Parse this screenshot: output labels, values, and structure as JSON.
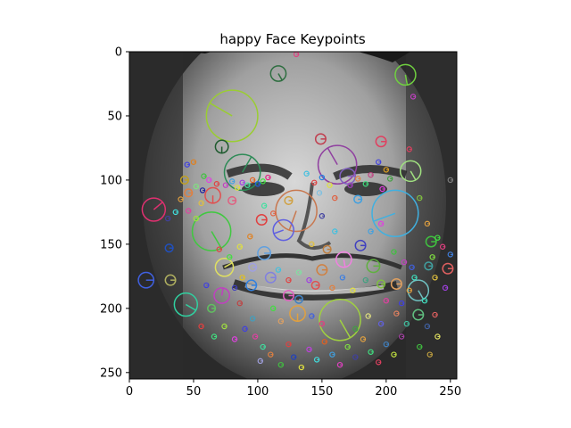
{
  "chart_data": {
    "type": "scatter",
    "title": "happy Face Keypoints",
    "xlabel": "",
    "ylabel": "",
    "xlim": [
      0,
      255
    ],
    "ylim": [
      255,
      0
    ],
    "grid": false,
    "x_ticks": [
      0,
      50,
      100,
      150,
      200,
      250
    ],
    "y_ticks": [
      0,
      50,
      100,
      150,
      200,
      250
    ],
    "x_tick_labels": [
      "0",
      "50",
      "100",
      "150",
      "200",
      "250"
    ],
    "y_tick_labels": [
      "0",
      "50",
      "100",
      "150",
      "200",
      "250"
    ],
    "background_image": "grayscale-face-photo",
    "keypoints": [
      {
        "x": 80,
        "y": 50,
        "r": 20,
        "angle": 150,
        "color": "#9acd32"
      },
      {
        "x": 130,
        "y": 124,
        "r": 16,
        "angle": 250,
        "color": "#c87850"
      },
      {
        "x": 207,
        "y": 126,
        "r": 18,
        "angle": 200,
        "color": "#40b0e0"
      },
      {
        "x": 64,
        "y": 140,
        "r": 15,
        "angle": 300,
        "color": "#40c840"
      },
      {
        "x": 164,
        "y": 209,
        "r": 16,
        "angle": 300,
        "color": "#a0d040"
      },
      {
        "x": 88,
        "y": 94,
        "r": 14,
        "angle": 60,
        "color": "#2e8b57"
      },
      {
        "x": 162,
        "y": 88,
        "r": 15,
        "angle": 120,
        "color": "#9040a0"
      },
      {
        "x": 19,
        "y": 123,
        "r": 9,
        "angle": 40,
        "color": "#e03070"
      },
      {
        "x": 44,
        "y": 197,
        "r": 9,
        "angle": 330,
        "color": "#30d0a0"
      },
      {
        "x": 120,
        "y": 139,
        "r": 8,
        "angle": 200,
        "color": "#6060e0"
      },
      {
        "x": 116,
        "y": 17,
        "r": 6,
        "angle": 300,
        "color": "#2e6e40"
      },
      {
        "x": 215,
        "y": 18,
        "r": 8,
        "angle": 280,
        "color": "#70d040"
      },
      {
        "x": 72,
        "y": 74,
        "r": 5,
        "angle": 270,
        "color": "#1e5a2e"
      },
      {
        "x": 219,
        "y": 93,
        "r": 8,
        "angle": 300,
        "color": "#a0e080"
      },
      {
        "x": 65,
        "y": 112,
        "r": 6,
        "angle": 270,
        "color": "#e05050"
      },
      {
        "x": 131,
        "y": 204,
        "r": 6,
        "angle": 270,
        "color": "#e0a040"
      },
      {
        "x": 225,
        "y": 186,
        "r": 8,
        "angle": 300,
        "color": "#70c0c0"
      },
      {
        "x": 74,
        "y": 168,
        "r": 7,
        "angle": 30,
        "color": "#e0e060"
      },
      {
        "x": 167,
        "y": 162,
        "r": 6,
        "angle": 280,
        "color": "#f080e0"
      },
      {
        "x": 72,
        "y": 190,
        "r": 6,
        "angle": 80,
        "color": "#c040c0"
      },
      {
        "x": 13,
        "y": 178,
        "r": 6,
        "angle": 0,
        "color": "#4060e0"
      },
      {
        "x": 103,
        "y": 131,
        "r": 4,
        "angle": 0,
        "color": "#e04040"
      },
      {
        "x": 105,
        "y": 157,
        "r": 5,
        "angle": 0,
        "color": "#60a0e0"
      },
      {
        "x": 170,
        "y": 97,
        "r": 6,
        "angle": 0,
        "color": "#8060c0"
      },
      {
        "x": 190,
        "y": 167,
        "r": 5,
        "angle": 0,
        "color": "#60b040"
      },
      {
        "x": 150,
        "y": 170,
        "r": 4,
        "angle": 0,
        "color": "#d08040"
      },
      {
        "x": 196,
        "y": 70,
        "r": 4,
        "angle": 0,
        "color": "#e04060"
      },
      {
        "x": 149,
        "y": 68,
        "r": 4,
        "angle": 0,
        "color": "#c04050"
      },
      {
        "x": 110,
        "y": 176,
        "r": 4,
        "angle": 0,
        "color": "#8080e0"
      },
      {
        "x": 95,
        "y": 182,
        "r": 4,
        "angle": 0,
        "color": "#3080e0"
      },
      {
        "x": 124,
        "y": 190,
        "r": 4,
        "angle": 0,
        "color": "#e060c0"
      },
      {
        "x": 32,
        "y": 178,
        "r": 4,
        "angle": 0,
        "color": "#b0b060"
      },
      {
        "x": 208,
        "y": 181,
        "r": 4,
        "angle": 0,
        "color": "#e0a060"
      },
      {
        "x": 225,
        "y": 205,
        "r": 4,
        "angle": 0,
        "color": "#60c080"
      },
      {
        "x": 248,
        "y": 169,
        "r": 4,
        "angle": 0,
        "color": "#e06060"
      },
      {
        "x": 235,
        "y": 148,
        "r": 4,
        "angle": 0,
        "color": "#40c040"
      },
      {
        "x": 43,
        "y": 100,
        "r": 3,
        "angle": 0,
        "color": "#c0a020"
      },
      {
        "x": 31,
        "y": 153,
        "r": 3,
        "angle": 0,
        "color": "#2050c0"
      },
      {
        "x": 180,
        "y": 151,
        "r": 4,
        "angle": 0,
        "color": "#4040c0"
      },
      {
        "x": 233,
        "y": 167,
        "r": 3,
        "angle": 0,
        "color": "#40a0a0"
      },
      {
        "x": 64,
        "y": 200,
        "r": 3,
        "angle": 0,
        "color": "#60c060"
      },
      {
        "x": 96,
        "y": 168,
        "r": 3,
        "angle": 0,
        "color": "#a0a0e0"
      },
      {
        "x": 46,
        "y": 110,
        "r": 3,
        "angle": 0,
        "color": "#e08040"
      },
      {
        "x": 80,
        "y": 116,
        "r": 3,
        "angle": 0,
        "color": "#e06080"
      },
      {
        "x": 124,
        "y": 116,
        "r": 3,
        "angle": 0,
        "color": "#d0a040"
      },
      {
        "x": 178,
        "y": 115,
        "r": 3,
        "angle": 0,
        "color": "#40a0e0"
      },
      {
        "x": 196,
        "y": 181,
        "r": 3,
        "angle": 0,
        "color": "#80c040"
      },
      {
        "x": 145,
        "y": 182,
        "r": 3,
        "angle": 0,
        "color": "#e05050"
      },
      {
        "x": 154,
        "y": 154,
        "r": 3,
        "angle": 0,
        "color": "#c08040"
      },
      {
        "x": 132,
        "y": 193,
        "r": 3,
        "angle": 0,
        "color": "#4080c0"
      }
    ],
    "markers": [
      {
        "x": 45,
        "y": 88,
        "color": "#4040e0"
      },
      {
        "x": 50,
        "y": 86,
        "color": "#e08020"
      },
      {
        "x": 58,
        "y": 97,
        "color": "#40c040"
      },
      {
        "x": 62,
        "y": 100,
        "color": "#e040e0"
      },
      {
        "x": 52,
        "y": 105,
        "color": "#80e080"
      },
      {
        "x": 57,
        "y": 108,
        "color": "#2020a0"
      },
      {
        "x": 68,
        "y": 103,
        "color": "#e04040"
      },
      {
        "x": 75,
        "y": 104,
        "color": "#c040c0"
      },
      {
        "x": 80,
        "y": 101,
        "color": "#40a0e0"
      },
      {
        "x": 84,
        "y": 106,
        "color": "#e0e040"
      },
      {
        "x": 88,
        "y": 102,
        "color": "#a040e0"
      },
      {
        "x": 92,
        "y": 104,
        "color": "#40e0a0"
      },
      {
        "x": 96,
        "y": 100,
        "color": "#e06020"
      },
      {
        "x": 100,
        "y": 103,
        "color": "#2060e0"
      },
      {
        "x": 104,
        "y": 101,
        "color": "#40e040"
      },
      {
        "x": 108,
        "y": 98,
        "color": "#e02080"
      },
      {
        "x": 40,
        "y": 115,
        "color": "#e0a040"
      },
      {
        "x": 36,
        "y": 125,
        "color": "#40e0e0"
      },
      {
        "x": 46,
        "y": 124,
        "color": "#e040a0"
      },
      {
        "x": 52,
        "y": 130,
        "color": "#a0e040"
      },
      {
        "x": 30,
        "y": 130,
        "color": "#4040a0"
      },
      {
        "x": 56,
        "y": 118,
        "color": "#e0c040"
      },
      {
        "x": 138,
        "y": 95,
        "color": "#40c0e0"
      },
      {
        "x": 144,
        "y": 102,
        "color": "#e04040"
      },
      {
        "x": 150,
        "y": 98,
        "color": "#2080e0"
      },
      {
        "x": 156,
        "y": 104,
        "color": "#e0e040"
      },
      {
        "x": 172,
        "y": 104,
        "color": "#a040c0"
      },
      {
        "x": 178,
        "y": 99,
        "color": "#e08040"
      },
      {
        "x": 184,
        "y": 103,
        "color": "#40e080"
      },
      {
        "x": 188,
        "y": 96,
        "color": "#c04080"
      },
      {
        "x": 194,
        "y": 86,
        "color": "#4040e0"
      },
      {
        "x": 200,
        "y": 92,
        "color": "#e0a020"
      },
      {
        "x": 203,
        "y": 99,
        "color": "#40a040"
      },
      {
        "x": 197,
        "y": 107,
        "color": "#e040e0"
      },
      {
        "x": 148,
        "y": 110,
        "color": "#80c0e0"
      },
      {
        "x": 160,
        "y": 114,
        "color": "#e06040"
      },
      {
        "x": 240,
        "y": 145,
        "color": "#40e040"
      },
      {
        "x": 244,
        "y": 152,
        "color": "#e04080"
      },
      {
        "x": 236,
        "y": 160,
        "color": "#80e040"
      },
      {
        "x": 250,
        "y": 158,
        "color": "#4080e0"
      },
      {
        "x": 238,
        "y": 176,
        "color": "#e0c040"
      },
      {
        "x": 246,
        "y": 184,
        "color": "#a040e0"
      },
      {
        "x": 230,
        "y": 194,
        "color": "#40e0c0"
      },
      {
        "x": 238,
        "y": 205,
        "color": "#e06060"
      },
      {
        "x": 232,
        "y": 214,
        "color": "#4060a0"
      },
      {
        "x": 240,
        "y": 222,
        "color": "#e0e060"
      },
      {
        "x": 226,
        "y": 230,
        "color": "#40c040"
      },
      {
        "x": 234,
        "y": 236,
        "color": "#c0a040"
      },
      {
        "x": 90,
        "y": 216,
        "color": "#4040e0"
      },
      {
        "x": 98,
        "y": 222,
        "color": "#e040a0"
      },
      {
        "x": 104,
        "y": 230,
        "color": "#40e0a0"
      },
      {
        "x": 110,
        "y": 236,
        "color": "#e08040"
      },
      {
        "x": 102,
        "y": 241,
        "color": "#a0a0e0"
      },
      {
        "x": 118,
        "y": 244,
        "color": "#40c040"
      },
      {
        "x": 124,
        "y": 228,
        "color": "#e04040"
      },
      {
        "x": 128,
        "y": 238,
        "color": "#2040c0"
      },
      {
        "x": 134,
        "y": 246,
        "color": "#e0e040"
      },
      {
        "x": 140,
        "y": 232,
        "color": "#c040e0"
      },
      {
        "x": 146,
        "y": 240,
        "color": "#40e0e0"
      },
      {
        "x": 152,
        "y": 226,
        "color": "#e06020"
      },
      {
        "x": 158,
        "y": 236,
        "color": "#40a0e0"
      },
      {
        "x": 164,
        "y": 244,
        "color": "#e040c0"
      },
      {
        "x": 170,
        "y": 230,
        "color": "#80e040"
      },
      {
        "x": 176,
        "y": 238,
        "color": "#4040a0"
      },
      {
        "x": 182,
        "y": 224,
        "color": "#e0a040"
      },
      {
        "x": 188,
        "y": 234,
        "color": "#40e080"
      },
      {
        "x": 194,
        "y": 242,
        "color": "#e04060"
      },
      {
        "x": 200,
        "y": 228,
        "color": "#4080c0"
      },
      {
        "x": 206,
        "y": 236,
        "color": "#c0e040"
      },
      {
        "x": 212,
        "y": 222,
        "color": "#a040a0"
      },
      {
        "x": 216,
        "y": 212,
        "color": "#40c0a0"
      },
      {
        "x": 208,
        "y": 204,
        "color": "#e08060"
      },
      {
        "x": 196,
        "y": 212,
        "color": "#6060e0"
      },
      {
        "x": 186,
        "y": 206,
        "color": "#e0e080"
      },
      {
        "x": 176,
        "y": 216,
        "color": "#40a040"
      },
      {
        "x": 150,
        "y": 212,
        "color": "#e04080"
      },
      {
        "x": 142,
        "y": 206,
        "color": "#4060e0"
      },
      {
        "x": 118,
        "y": 210,
        "color": "#e0a060"
      },
      {
        "x": 112,
        "y": 200,
        "color": "#40e040"
      },
      {
        "x": 86,
        "y": 196,
        "color": "#c04040"
      },
      {
        "x": 82,
        "y": 184,
        "color": "#4040c0"
      },
      {
        "x": 88,
        "y": 176,
        "color": "#e0c020"
      },
      {
        "x": 116,
        "y": 170,
        "color": "#40c0e0"
      },
      {
        "x": 124,
        "y": 178,
        "color": "#e04040"
      },
      {
        "x": 132,
        "y": 172,
        "color": "#80e0a0"
      },
      {
        "x": 140,
        "y": 178,
        "color": "#a040e0"
      },
      {
        "x": 158,
        "y": 184,
        "color": "#e08040"
      },
      {
        "x": 166,
        "y": 176,
        "color": "#4080e0"
      },
      {
        "x": 174,
        "y": 186,
        "color": "#e0e040"
      },
      {
        "x": 184,
        "y": 178,
        "color": "#40a080"
      },
      {
        "x": 200,
        "y": 194,
        "color": "#e040a0"
      },
      {
        "x": 212,
        "y": 196,
        "color": "#4040e0"
      },
      {
        "x": 218,
        "y": 186,
        "color": "#e0a040"
      },
      {
        "x": 222,
        "y": 176,
        "color": "#40e0c0"
      },
      {
        "x": 214,
        "y": 164,
        "color": "#c040c0"
      },
      {
        "x": 206,
        "y": 156,
        "color": "#40c040"
      },
      {
        "x": 70,
        "y": 154,
        "color": "#e04040"
      },
      {
        "x": 78,
        "y": 160,
        "color": "#40e040"
      },
      {
        "x": 86,
        "y": 152,
        "color": "#e0e040"
      },
      {
        "x": 60,
        "y": 182,
        "color": "#4040e0"
      },
      {
        "x": 94,
        "y": 144,
        "color": "#e08020"
      },
      {
        "x": 188,
        "y": 140,
        "color": "#40a0e0"
      },
      {
        "x": 196,
        "y": 134,
        "color": "#e040e0"
      },
      {
        "x": 226,
        "y": 114,
        "color": "#80c040"
      },
      {
        "x": 218,
        "y": 76,
        "color": "#e04060"
      },
      {
        "x": 221,
        "y": 35,
        "color": "#c040c0"
      },
      {
        "x": 130,
        "y": 2,
        "color": "#e04080"
      },
      {
        "x": 105,
        "y": 120,
        "color": "#40e0a0"
      },
      {
        "x": 112,
        "y": 126,
        "color": "#e06040"
      },
      {
        "x": 150,
        "y": 128,
        "color": "#4040a0"
      },
      {
        "x": 142,
        "y": 150,
        "color": "#e0c040"
      },
      {
        "x": 160,
        "y": 140,
        "color": "#40c0e0"
      },
      {
        "x": 250,
        "y": 100,
        "color": "#808080"
      },
      {
        "x": 232,
        "y": 134,
        "color": "#e0a040"
      },
      {
        "x": 220,
        "y": 168,
        "color": "#4060e0"
      },
      {
        "x": 56,
        "y": 214,
        "color": "#e04040"
      },
      {
        "x": 66,
        "y": 222,
        "color": "#40e080"
      },
      {
        "x": 74,
        "y": 214,
        "color": "#a0e040"
      },
      {
        "x": 82,
        "y": 224,
        "color": "#e040e0"
      },
      {
        "x": 96,
        "y": 208,
        "color": "#40a0c0"
      }
    ]
  }
}
